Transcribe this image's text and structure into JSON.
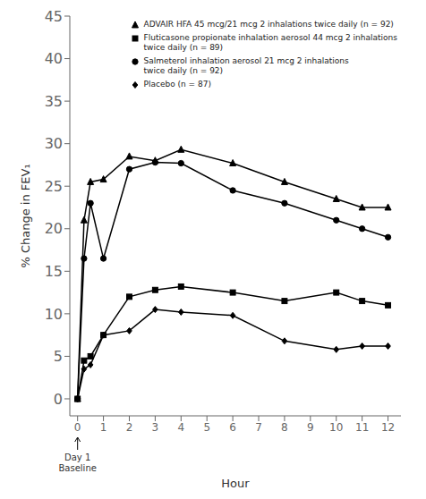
{
  "chart_data": {
    "type": "line",
    "x": [
      0,
      0.25,
      0.5,
      1,
      2,
      3,
      4,
      6,
      8,
      10,
      11,
      12
    ],
    "series": [
      {
        "name": "ADVAIR HFA 45 mcg/21 mcg 2 inhalations twice daily (n = 92)",
        "values": [
          0,
          21.0,
          25.5,
          25.8,
          28.5,
          28.0,
          29.3,
          27.7,
          25.5,
          23.5,
          22.5,
          22.5
        ],
        "marker": "triangle",
        "color": "black"
      },
      {
        "name": "Fluticasone propionate inhalation aerosol 44 mcg 2 inhalations\ntwice daily (n = 89)",
        "values": [
          0,
          4.5,
          5.0,
          7.5,
          12.0,
          12.8,
          13.2,
          12.5,
          11.5,
          12.5,
          11.5,
          11.0
        ],
        "marker": "square",
        "color": "black"
      },
      {
        "name": "Salmeterol inhalation aerosol 21 mcg 2 inhalations\ntwice daily (n = 92)",
        "values": [
          0,
          16.5,
          23.0,
          16.5,
          27.0,
          27.8,
          27.7,
          24.5,
          23.0,
          21.0,
          20.0,
          19.0
        ],
        "marker": "circle",
        "color": "black"
      },
      {
        "name": "Placebo (n = 87)",
        "values": [
          0,
          3.5,
          4.0,
          7.5,
          8.0,
          10.5,
          10.2,
          9.8,
          6.8,
          5.8,
          6.2,
          6.2
        ],
        "marker": "diamond",
        "color": "black"
      }
    ],
    "xlim": [
      -0.3,
      12.5
    ],
    "ylim": [
      -2,
      45
    ],
    "xticks": [
      0,
      1,
      2,
      3,
      4,
      5,
      6,
      7,
      8,
      9,
      10,
      11,
      12
    ],
    "yticks": [
      0,
      5,
      10,
      15,
      20,
      25,
      30,
      35,
      40,
      45
    ],
    "xlabel": "Hour",
    "ylabel": "% Change in FEV₁",
    "annotations": [
      {
        "text": "Day 1",
        "x": 0
      },
      {
        "text": "Baseline",
        "x": 0
      }
    ],
    "legend": "upper right",
    "grid": false
  }
}
